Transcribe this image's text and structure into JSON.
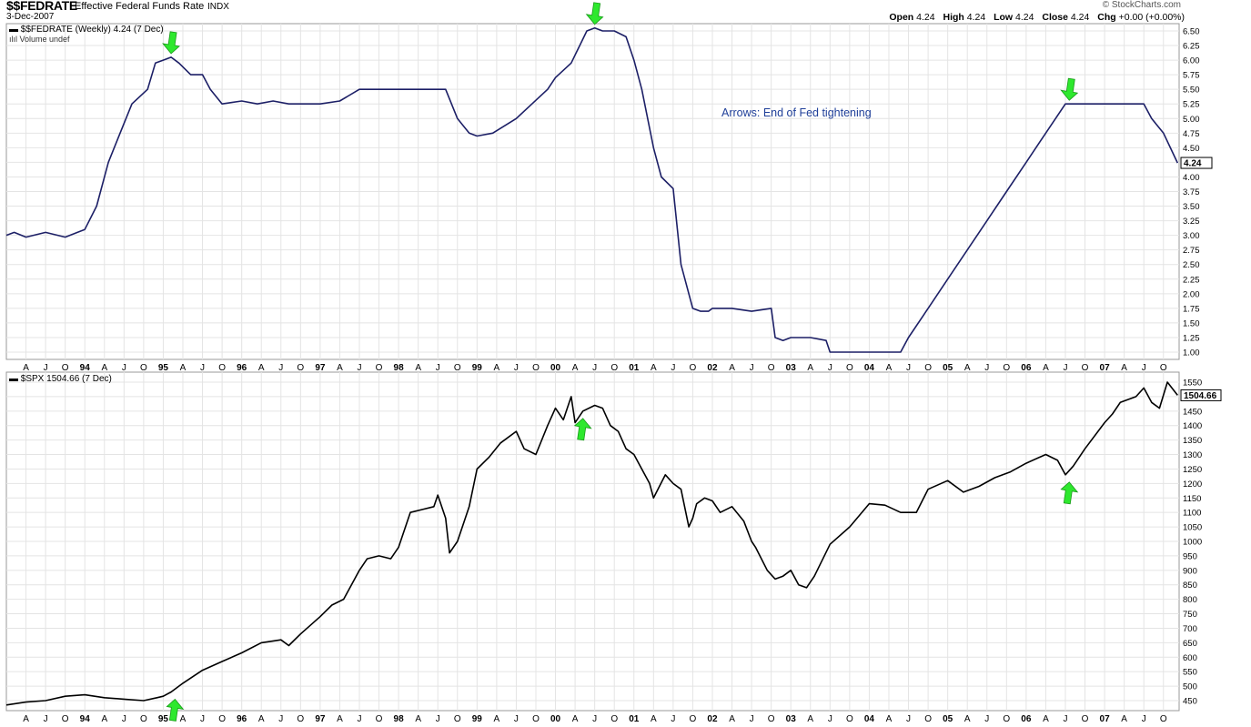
{
  "header": {
    "symbol": "$$FEDRATE",
    "name": "Effective Federal Funds Rate",
    "exchange": "INDX",
    "date": "3-Dec-2007",
    "credit": "© StockCharts.com",
    "ohlc": {
      "open_label": "Open",
      "open": "4.24",
      "high_label": "High",
      "high": "4.24",
      "low_label": "Low",
      "low": "4.24",
      "close_label": "Close",
      "close": "4.24",
      "chg_label": "Chg",
      "chg": "+0.00 (+0.00%)"
    }
  },
  "panels": {
    "top_legend": "$$FEDRATE (Weekly) 4.24 (7 Dec)",
    "top_volume": "Volume undef",
    "bottom_legend": "$SPX 1504.66 (7 Dec)",
    "annotation": "Arrows: End of Fed tightening"
  },
  "colors": {
    "fed_line": "#1c1f66",
    "spx_line": "#000000",
    "arrow": "#2ee82e",
    "annotation": "#1f3f99",
    "grid": "#e4e4e4"
  },
  "chart_data": [
    {
      "type": "line",
      "series": [
        {
          "name": "$$FEDRATE (Weekly)",
          "x": [
            1993.0,
            1993.1,
            1993.25,
            1993.5,
            1993.75,
            1994.0,
            1994.15,
            1994.3,
            1994.45,
            1994.6,
            1994.8,
            1994.9,
            1995.0,
            1995.1,
            1995.2,
            1995.35,
            1995.5,
            1995.6,
            1995.75,
            1996.0,
            1996.2,
            1996.4,
            1996.6,
            1996.8,
            1997.0,
            1997.25,
            1997.5,
            1997.75,
            1998.0,
            1998.25,
            1998.5,
            1998.6,
            1998.75,
            1998.9,
            1999.0,
            1999.2,
            1999.5,
            1999.7,
            1999.9,
            2000.0,
            2000.2,
            2000.4,
            2000.5,
            2000.6,
            2000.75,
            2000.9,
            2001.0,
            2001.1,
            2001.25,
            2001.35,
            2001.5,
            2001.6,
            2001.75,
            2001.85,
            2001.95,
            2002.0,
            2002.25,
            2002.5,
            2002.75,
            2002.8,
            2002.9,
            2003.0,
            2003.25,
            2003.45,
            2003.5,
            2003.75,
            2004.0,
            2004.4,
            2004.5,
            2004.75,
            2005.0,
            2005.25,
            2005.5,
            2005.75,
            2006.0,
            2006.25,
            2006.5,
            2006.75,
            2007.0,
            2007.25,
            2007.5,
            2007.6,
            2007.75,
            2007.93
          ],
          "y": [
            3.0,
            3.05,
            2.97,
            3.05,
            2.97,
            3.1,
            3.5,
            4.25,
            4.75,
            5.25,
            5.5,
            5.95,
            6.0,
            6.05,
            5.95,
            5.75,
            5.75,
            5.5,
            5.25,
            5.3,
            5.25,
            5.3,
            5.25,
            5.25,
            5.25,
            5.3,
            5.5,
            5.5,
            5.5,
            5.5,
            5.5,
            5.5,
            5.0,
            4.75,
            4.7,
            4.75,
            5.0,
            5.25,
            5.5,
            5.7,
            5.95,
            6.5,
            6.55,
            6.5,
            6.5,
            6.4,
            6.0,
            5.5,
            4.5,
            4.0,
            3.8,
            2.5,
            1.75,
            1.7,
            1.7,
            1.75,
            1.75,
            1.7,
            1.75,
            1.25,
            1.2,
            1.25,
            1.25,
            1.2,
            1.0,
            1.0,
            1.0,
            1.0,
            1.25,
            1.75,
            2.25,
            2.75,
            3.25,
            3.75,
            4.25,
            4.75,
            5.25,
            5.25,
            5.25,
            5.25,
            5.25,
            5.0,
            4.75,
            4.24
          ]
        }
      ],
      "xlim": [
        1993.0,
        2007.95
      ],
      "ylim": [
        0.85,
        6.6
      ],
      "y_ticks": [
        "1.00",
        "1.25",
        "1.50",
        "1.75",
        "2.00",
        "2.25",
        "2.50",
        "2.75",
        "3.00",
        "3.25",
        "3.50",
        "3.75",
        "4.00",
        "4.25",
        "4.50",
        "4.75",
        "5.00",
        "5.25",
        "5.50",
        "5.75",
        "6.00",
        "6.25",
        "6.50"
      ],
      "last_value_label": "4.24",
      "y_axis_side": "right",
      "grid": true,
      "arrows": [
        1995.1,
        2000.5,
        2006.55
      ]
    },
    {
      "type": "line",
      "series": [
        {
          "name": "$SPX",
          "x": [
            1993.0,
            1993.25,
            1993.5,
            1993.75,
            1994.0,
            1994.25,
            1994.5,
            1994.75,
            1994.92,
            1995.0,
            1995.1,
            1995.25,
            1995.5,
            1995.75,
            1996.0,
            1996.25,
            1996.5,
            1996.6,
            1996.75,
            1997.0,
            1997.15,
            1997.3,
            1997.5,
            1997.6,
            1997.75,
            1997.9,
            1998.0,
            1998.15,
            1998.3,
            1998.45,
            1998.5,
            1998.6,
            1998.65,
            1998.75,
            1998.9,
            1999.0,
            1999.15,
            1999.3,
            1999.5,
            1999.6,
            1999.75,
            1999.9,
            2000.0,
            2000.1,
            2000.2,
            2000.25,
            2000.35,
            2000.5,
            2000.6,
            2000.7,
            2000.8,
            2000.9,
            2001.0,
            2001.1,
            2001.2,
            2001.25,
            2001.4,
            2001.5,
            2001.6,
            2001.7,
            2001.75,
            2001.8,
            2001.9,
            2002.0,
            2002.1,
            2002.25,
            2002.4,
            2002.5,
            2002.55,
            2002.7,
            2002.8,
            2002.9,
            2003.0,
            2003.1,
            2003.2,
            2003.3,
            2003.5,
            2003.75,
            2004.0,
            2004.2,
            2004.4,
            2004.6,
            2004.75,
            2005.0,
            2005.2,
            2005.4,
            2005.6,
            2005.8,
            2006.0,
            2006.25,
            2006.4,
            2006.5,
            2006.6,
            2006.75,
            2007.0,
            2007.1,
            2007.2,
            2007.4,
            2007.5,
            2007.6,
            2007.7,
            2007.8,
            2007.93
          ],
          "y": [
            435,
            445,
            450,
            465,
            470,
            460,
            455,
            450,
            460,
            465,
            480,
            510,
            555,
            585,
            615,
            650,
            660,
            640,
            680,
            740,
            780,
            800,
            900,
            940,
            950,
            940,
            980,
            1100,
            1110,
            1120,
            1160,
            1080,
            960,
            1000,
            1120,
            1250,
            1290,
            1340,
            1380,
            1320,
            1300,
            1400,
            1460,
            1420,
            1500,
            1410,
            1450,
            1470,
            1460,
            1400,
            1380,
            1320,
            1300,
            1250,
            1200,
            1150,
            1230,
            1200,
            1180,
            1050,
            1080,
            1130,
            1150,
            1140,
            1100,
            1120,
            1070,
            1000,
            980,
            900,
            870,
            880,
            900,
            850,
            840,
            880,
            990,
            1050,
            1130,
            1125,
            1100,
            1100,
            1180,
            1210,
            1170,
            1190,
            1220,
            1240,
            1270,
            1300,
            1280,
            1230,
            1260,
            1320,
            1410,
            1440,
            1480,
            1500,
            1530,
            1480,
            1460,
            1550,
            1504.66
          ]
        }
      ],
      "xlim": [
        1993.0,
        2007.95
      ],
      "ylim": [
        425,
        1575
      ],
      "y_ticks": [
        "450",
        "500",
        "550",
        "600",
        "650",
        "700",
        "750",
        "800",
        "850",
        "900",
        "950",
        "1000",
        "1050",
        "1100",
        "1150",
        "1200",
        "1250",
        "1300",
        "1350",
        "1400",
        "1450",
        "1500",
        "1550"
      ],
      "last_value_label": "1504.66",
      "y_axis_side": "right",
      "grid": true,
      "arrows": [
        1995.15,
        2000.35,
        2006.55
      ]
    }
  ],
  "x_axis": {
    "ticks": [
      "A",
      "J",
      "O",
      "94",
      "A",
      "J",
      "O",
      "95",
      "A",
      "J",
      "O",
      "96",
      "A",
      "J",
      "O",
      "97",
      "A",
      "J",
      "O",
      "98",
      "A",
      "J",
      "O",
      "99",
      "A",
      "J",
      "O",
      "00",
      "A",
      "J",
      "O",
      "01",
      "A",
      "J",
      "O",
      "02",
      "A",
      "J",
      "O",
      "03",
      "A",
      "J",
      "O",
      "04",
      "A",
      "J",
      "O",
      "05",
      "A",
      "J",
      "O",
      "06",
      "A",
      "J",
      "O",
      "07",
      "A",
      "J",
      "O"
    ],
    "tick_x": [
      1993.25,
      1993.5,
      1993.75,
      1994.0,
      1994.25,
      1994.5,
      1994.75,
      1995.0,
      1995.25,
      1995.5,
      1995.75,
      1996.0,
      1996.25,
      1996.5,
      1996.75,
      1997.0,
      1997.25,
      1997.5,
      1997.75,
      1998.0,
      1998.25,
      1998.5,
      1998.75,
      1999.0,
      1999.25,
      1999.5,
      1999.75,
      2000.0,
      2000.25,
      2000.5,
      2000.75,
      2001.0,
      2001.25,
      2001.5,
      2001.75,
      2002.0,
      2002.25,
      2002.5,
      2002.75,
      2003.0,
      2003.25,
      2003.5,
      2003.75,
      2004.0,
      2004.25,
      2004.5,
      2004.75,
      2005.0,
      2005.25,
      2005.5,
      2005.75,
      2006.0,
      2006.25,
      2006.5,
      2006.75,
      2007.0,
      2007.25,
      2007.5,
      2007.75
    ]
  }
}
